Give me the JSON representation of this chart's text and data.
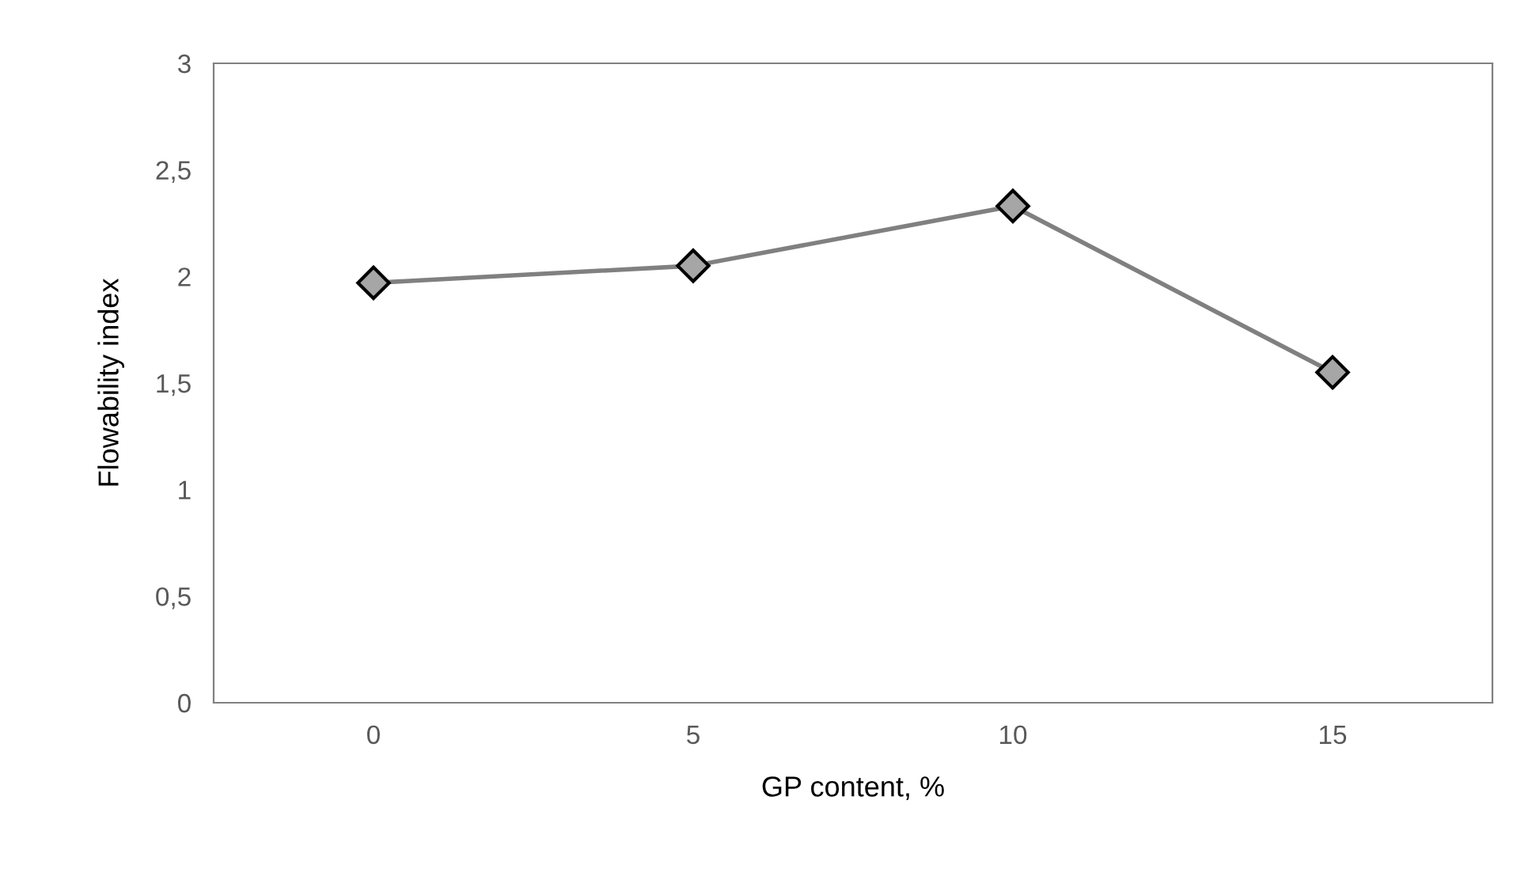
{
  "chart_data": {
    "type": "line",
    "xlabel": "GP content, %",
    "ylabel": "Flowability index",
    "categories": [
      "0",
      "5",
      "10",
      "15"
    ],
    "series": [
      {
        "color": "#808080",
        "values": [
          1.97,
          2.05,
          2.33,
          1.55
        ]
      }
    ],
    "marker": "diamond",
    "line_style": "solid",
    "ylim": [
      0,
      3
    ],
    "yticks": [
      0,
      {
        "value": 0.5,
        "label": "0,5"
      },
      1,
      {
        "value": 1.5,
        "label": "1,5"
      },
      2,
      {
        "value": 2.5,
        "label": "2,5"
      },
      3
    ],
    "grid": false,
    "legend": false
  }
}
